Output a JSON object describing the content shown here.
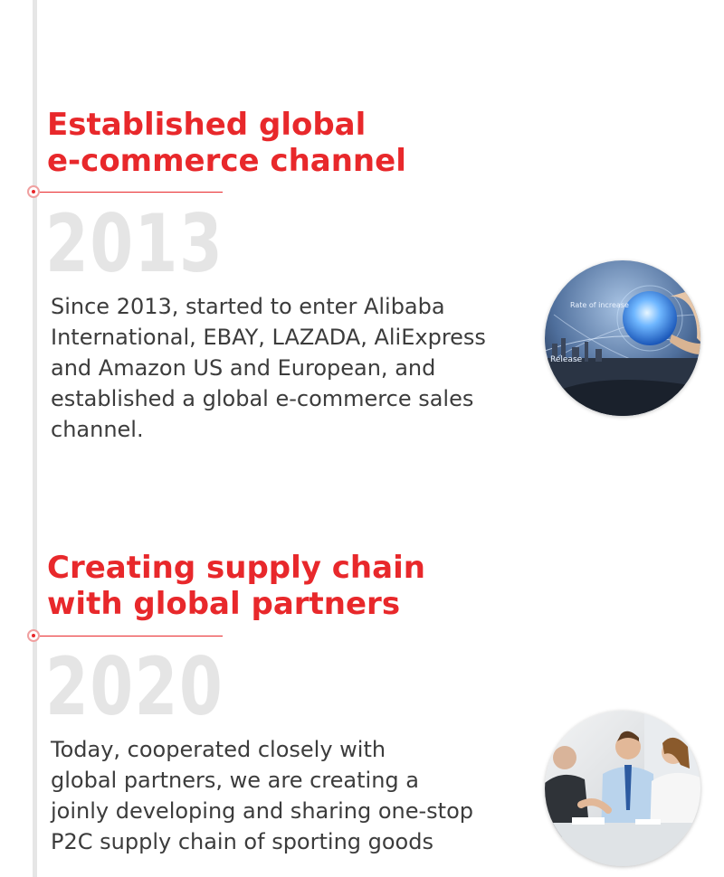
{
  "milestones": [
    {
      "heading_line1": "Established global",
      "heading_line2": "e-commerce channel",
      "year": "2013",
      "desc_lines": [
        "Since 2013, started to enter Alibaba",
        "International, EBAY, LAZADA, AliExpress",
        "and Amazon US and European, and",
        "established a global e-commerce sales",
        "channel."
      ],
      "image": "globe-network-photo",
      "image_caption_1": "Rate of increase",
      "image_caption_2": "Release"
    },
    {
      "heading_line1": "Creating supply chain",
      "heading_line2": "with global partners",
      "year": "2020",
      "desc_lines": [
        "Today, cooperated closely with",
        "global partners, we are creating a",
        "joinly developing and sharing one-stop",
        "P2C supply chain of sporting goods"
      ],
      "image": "business-meeting-photo"
    }
  ],
  "colors": {
    "accent": "#e8282b",
    "year": "#e5e5e5",
    "text": "#3c3c3c",
    "line": "#e6e6e6"
  }
}
